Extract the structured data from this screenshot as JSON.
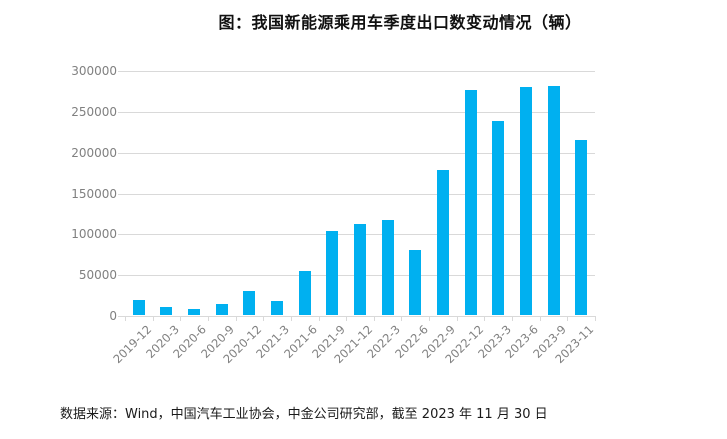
{
  "footer": {
    "source_note": "数据来源：Wind，中国汽车工业协会，中金公司研究部，截至 2023 年 11 月 30 日"
  },
  "colors": {
    "bar": "#00B0F0",
    "grid": "#D9D9D9",
    "axis_text": "#808080",
    "title_text": "#111111"
  },
  "chart_data": {
    "type": "bar",
    "title": "图：我国新能源乘用车季度出口数变动情况（辆）",
    "categories": [
      "2019-12",
      "2020-3",
      "2020-6",
      "2020-9",
      "2020-12",
      "2021-3",
      "2021-6",
      "2021-9",
      "2021-12",
      "2022-3",
      "2022-6",
      "2022-9",
      "2022-12",
      "2023-3",
      "2023-6",
      "2023-9",
      "2023-11"
    ],
    "values": [
      18000,
      9400,
      7900,
      13500,
      30000,
      17600,
      54000,
      103000,
      111000,
      116000,
      79000,
      178000,
      276000,
      237000,
      279000,
      280000,
      214000
    ],
    "xlabel": "",
    "ylabel": "",
    "ylim": [
      0,
      300000
    ],
    "ytick_step": 50000,
    "grid": true,
    "legend_position": "none"
  }
}
